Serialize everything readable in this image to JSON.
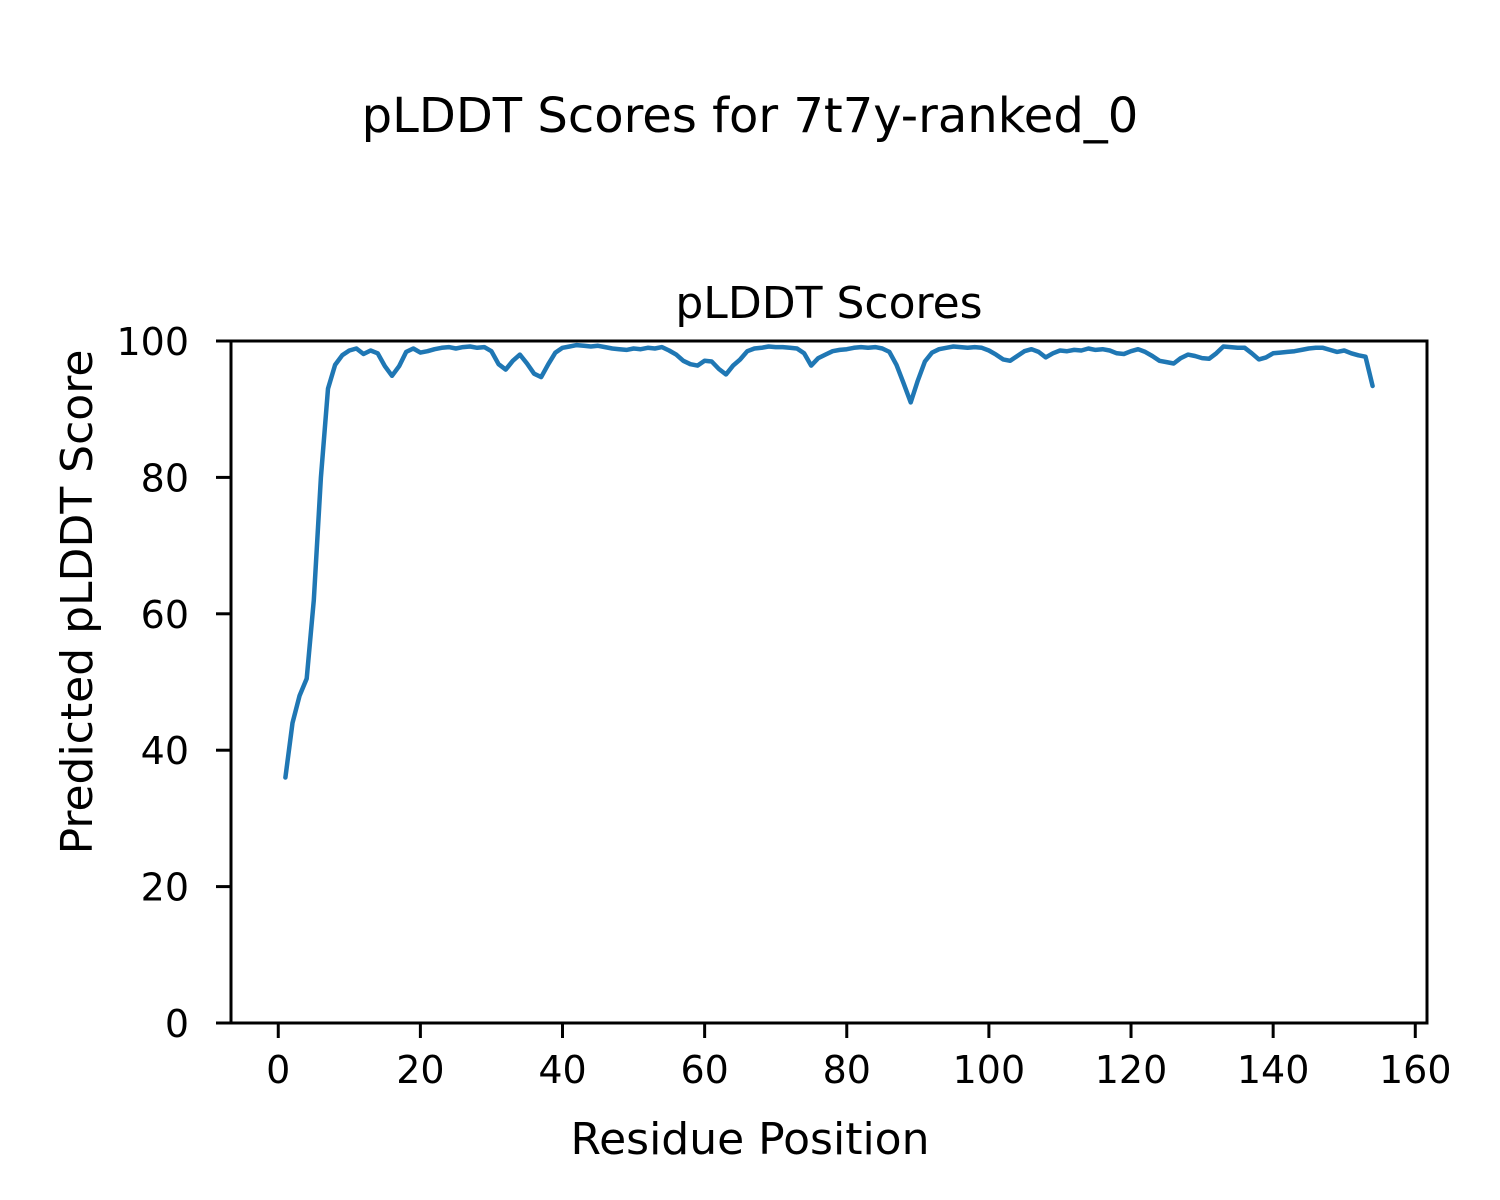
{
  "chart_data": {
    "type": "line",
    "figure_title": "pLDDT Scores for 7t7y-ranked_0",
    "title": "pLDDT Scores",
    "xlabel": "Residue Position",
    "ylabel": "Predicted pLDDT Score",
    "xlim": [
      -6.65,
      161.65
    ],
    "ylim": [
      0,
      100
    ],
    "x_ticks": [
      0,
      20,
      40,
      60,
      80,
      100,
      120,
      140,
      160
    ],
    "y_ticks": [
      0,
      20,
      40,
      60,
      80,
      100
    ],
    "grid": false,
    "legend_position": "none",
    "line_color": "#1f77b4",
    "axes_color": "#000000",
    "series": [
      {
        "name": "pLDDT",
        "x_start": 1,
        "x_step": 1,
        "values": [
          36.0,
          44.0,
          48.0,
          50.5,
          62.0,
          80.0,
          93.0,
          96.5,
          97.9,
          98.6,
          98.9,
          98.1,
          98.6,
          98.2,
          96.3,
          94.9,
          96.3,
          98.4,
          98.9,
          98.3,
          98.5,
          98.8,
          99.0,
          99.1,
          98.9,
          99.1,
          99.2,
          99.0,
          99.1,
          98.5,
          96.6,
          95.8,
          97.1,
          98.0,
          96.7,
          95.2,
          94.7,
          96.6,
          98.3,
          99.0,
          99.2,
          99.4,
          99.3,
          99.2,
          99.3,
          99.1,
          98.9,
          98.8,
          98.7,
          98.9,
          98.8,
          99.0,
          98.9,
          99.1,
          98.6,
          98.0,
          97.1,
          96.6,
          96.4,
          97.1,
          97.0,
          95.9,
          95.1,
          96.4,
          97.3,
          98.5,
          98.9,
          99.0,
          99.2,
          99.1,
          99.1,
          99.0,
          98.9,
          98.2,
          96.4,
          97.5,
          98.0,
          98.5,
          98.7,
          98.8,
          99.0,
          99.1,
          99.0,
          99.1,
          98.9,
          98.4,
          96.5,
          93.8,
          91.0,
          94.2,
          97.0,
          98.3,
          98.8,
          99.0,
          99.2,
          99.1,
          99.0,
          99.1,
          99.0,
          98.6,
          98.0,
          97.3,
          97.1,
          97.8,
          98.5,
          98.8,
          98.4,
          97.6,
          98.2,
          98.6,
          98.5,
          98.7,
          98.6,
          98.9,
          98.7,
          98.8,
          98.6,
          98.2,
          98.1,
          98.5,
          98.8,
          98.4,
          97.8,
          97.1,
          96.9,
          96.7,
          97.5,
          98.0,
          97.8,
          97.5,
          97.4,
          98.2,
          99.2,
          99.1,
          99.0,
          99.0,
          98.2,
          97.3,
          97.6,
          98.2,
          98.3,
          98.4,
          98.5,
          98.7,
          98.9,
          99.0,
          99.0,
          98.7,
          98.4,
          98.6,
          98.2,
          97.9,
          97.7,
          93.4
        ]
      }
    ]
  }
}
